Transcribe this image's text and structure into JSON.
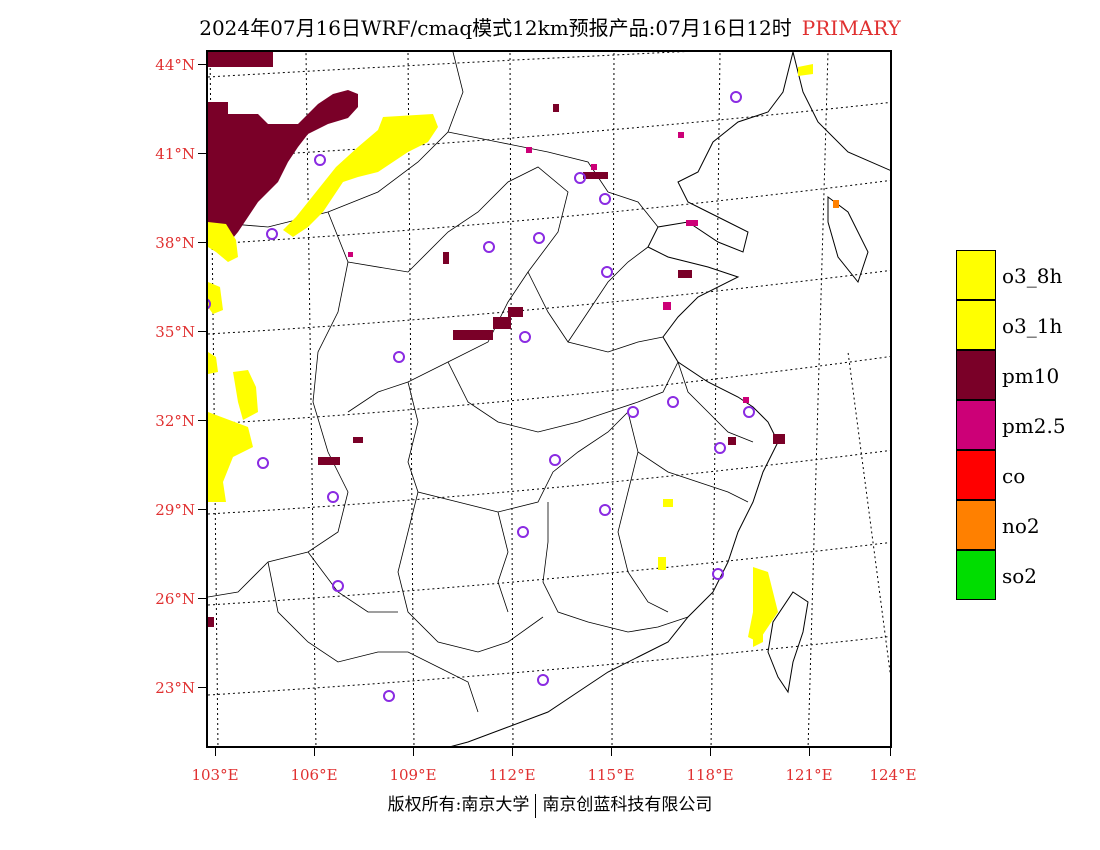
{
  "title": {
    "main": "2024年07月16日WRF/cmaq模式12km预报产品:07月16日12时",
    "tag": "PRIMARY"
  },
  "colors": {
    "o3_8h": "#ffff00",
    "o3_1h": "#ffff00",
    "pm10": "#7a0028",
    "pm2_5": "#cc0077",
    "co": "#ff0000",
    "no2": "#ff8000",
    "so2": "#00dd00",
    "station": "#8a2be2",
    "label": "#e03030"
  },
  "axes": {
    "lat_labels": [
      "44°N",
      "41°N",
      "38°N",
      "35°N",
      "32°N",
      "29°N",
      "26°N",
      "23°N"
    ],
    "lon_labels": [
      "103°E",
      "106°E",
      "109°E",
      "112°E",
      "115°E",
      "118°E",
      "121°E",
      "124°E"
    ]
  },
  "legend": [
    {
      "key": "o3_8h",
      "label": "o3_8h"
    },
    {
      "key": "o3_1h",
      "label": "o3_1h"
    },
    {
      "key": "pm10",
      "label": "pm10"
    },
    {
      "key": "pm2_5",
      "label": "pm2.5"
    },
    {
      "key": "co",
      "label": "co"
    },
    {
      "key": "no2",
      "label": "no2"
    },
    {
      "key": "so2",
      "label": "so2"
    }
  ],
  "footer": {
    "left": "版权所有:南京大学",
    "right": "南京创蓝科技有限公司"
  }
}
